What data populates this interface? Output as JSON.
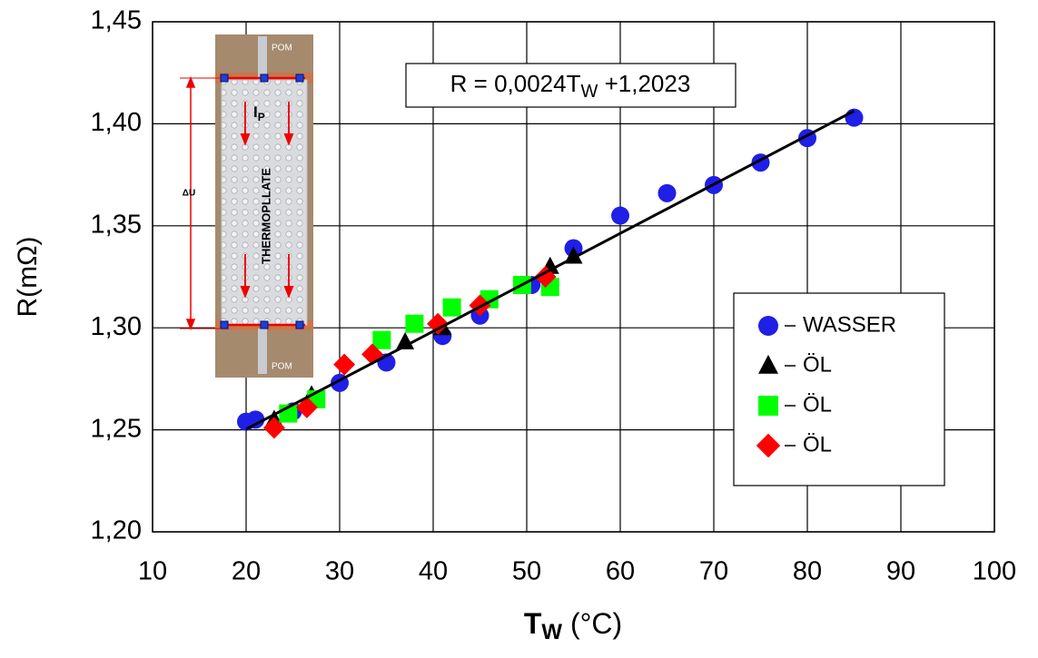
{
  "chart_data": {
    "type": "scatter",
    "y_label": "R(mΩ)",
    "x_label": {
      "main": "T",
      "sub": "W",
      "rest": " (°C)"
    },
    "xlim": [
      10,
      100
    ],
    "xticks": [
      10,
      20,
      30,
      40,
      50,
      60,
      70,
      80,
      90,
      100
    ],
    "ylim": [
      1.2,
      1.45
    ],
    "yticks": [
      {
        "value": 1.2,
        "label": "1,20"
      },
      {
        "value": 1.25,
        "label": "1,25"
      },
      {
        "value": 1.3,
        "label": "1,30"
      },
      {
        "value": 1.35,
        "label": "1,35"
      },
      {
        "value": 1.4,
        "label": "1,40"
      },
      {
        "value": 1.45,
        "label": "1,45"
      }
    ],
    "grid": true,
    "legend": "right",
    "series": [
      {
        "name": "WASSER",
        "color": "#1f1fe6",
        "marker": "circle",
        "x": [
          20,
          21,
          25,
          30,
          35,
          41,
          45,
          50.5,
          55,
          60,
          65,
          70,
          75,
          80,
          85
        ],
        "values": [
          1.254,
          1.255,
          1.259,
          1.273,
          1.283,
          1.296,
          1.306,
          1.321,
          1.339,
          1.355,
          1.366,
          1.37,
          1.381,
          1.393,
          1.403
        ]
      },
      {
        "name": "ÖL",
        "color": "#000000",
        "marker": "triangle",
        "x": [
          23,
          27,
          37,
          41,
          52.5,
          55
        ],
        "values": [
          1.255,
          1.267,
          1.293,
          1.3,
          1.33,
          1.335
        ]
      },
      {
        "name": "ÖL",
        "color": "#00ff00",
        "marker": "square",
        "x": [
          24.5,
          27.5,
          34.5,
          38,
          42,
          46,
          49.5,
          52.5
        ],
        "values": [
          1.258,
          1.265,
          1.294,
          1.302,
          1.31,
          1.314,
          1.321,
          1.32
        ]
      },
      {
        "name": "ÖL",
        "color": "#ff0000",
        "marker": "diamond",
        "x": [
          23,
          26.5,
          30.5,
          33.5,
          40.5,
          45,
          52
        ],
        "values": [
          1.251,
          1.261,
          1.282,
          1.287,
          1.302,
          1.311,
          1.325
        ]
      }
    ],
    "trendline": {
      "slope": 0.0024,
      "intercept": 1.2023,
      "x_range": [
        20,
        85
      ],
      "color": "#000000"
    },
    "equation": {
      "main": "R = 0,0024T",
      "sub": "W",
      "rest": " +1,2023"
    },
    "inset": {
      "top_label": "POM",
      "bottom_label": "POM",
      "current": "I",
      "current_sub": "P",
      "plate": "THERMOPLLATE",
      "voltage": "ΔU"
    }
  }
}
